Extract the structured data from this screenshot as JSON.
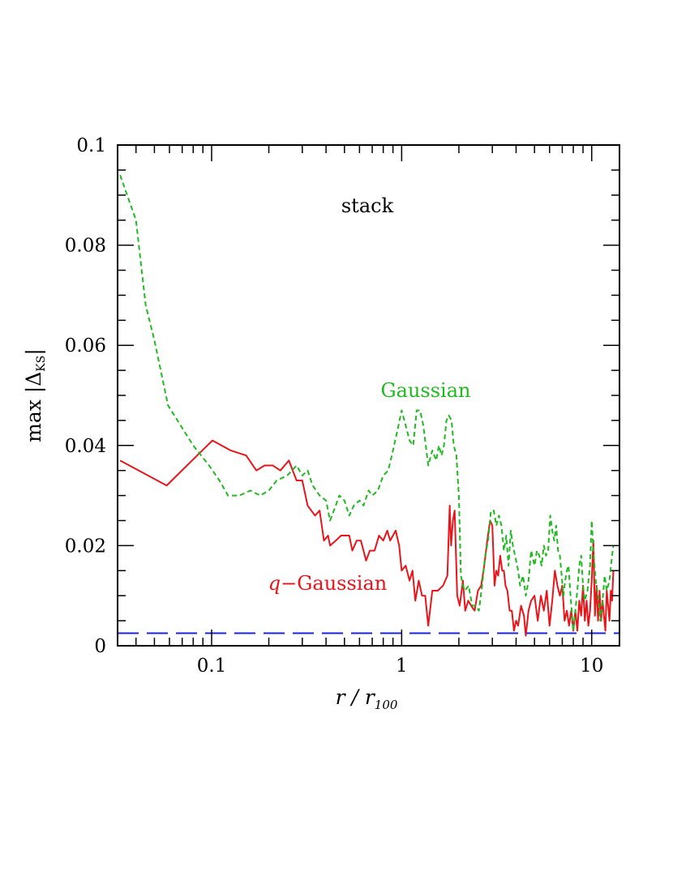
{
  "chart_data": {
    "type": "line",
    "title": "",
    "xlabel": {
      "main": "r / r",
      "subscript": "100"
    },
    "ylabel": {
      "main": "max |Δ",
      "subscript": "KS",
      "close": "|"
    },
    "x_scale": "log",
    "xlim": [
      0.032,
      14
    ],
    "ylim": [
      0,
      0.1
    ],
    "x_ticks": [
      {
        "value": 0.1,
        "label": "0.1"
      },
      {
        "value": 1,
        "label": "1"
      },
      {
        "value": 10,
        "label": "10"
      }
    ],
    "y_ticks": [
      {
        "value": 0,
        "label": "0"
      },
      {
        "value": 0.02,
        "label": "0.02"
      },
      {
        "value": 0.04,
        "label": "0.04"
      },
      {
        "value": 0.06,
        "label": "0.06"
      },
      {
        "value": 0.08,
        "label": "0.08"
      },
      {
        "value": 0.1,
        "label": "0.1"
      }
    ],
    "grid": false,
    "annotations": {
      "stack": "stack",
      "gaussian": "Gaussian",
      "qgaussian_q": "q",
      "qgaussian_rest": "−Gaussian"
    },
    "series": [
      {
        "name": "q−Gaussian",
        "color": "#e8151b",
        "style": "solid",
        "points": [
          [
            0.033,
            0.037
          ],
          [
            0.058,
            0.032
          ],
          [
            0.101,
            0.041
          ],
          [
            0.126,
            0.039
          ],
          [
            0.152,
            0.038
          ],
          [
            0.172,
            0.035
          ],
          [
            0.19,
            0.036
          ],
          [
            0.21,
            0.036
          ],
          [
            0.23,
            0.035
          ],
          [
            0.255,
            0.037
          ],
          [
            0.28,
            0.033
          ],
          [
            0.3,
            0.033
          ],
          [
            0.32,
            0.028
          ],
          [
            0.35,
            0.026
          ],
          [
            0.37,
            0.027
          ],
          [
            0.39,
            0.021
          ],
          [
            0.41,
            0.022
          ],
          [
            0.42,
            0.02
          ],
          [
            0.45,
            0.021
          ],
          [
            0.48,
            0.022
          ],
          [
            0.5,
            0.022
          ],
          [
            0.53,
            0.022
          ],
          [
            0.55,
            0.019
          ],
          [
            0.58,
            0.021
          ],
          [
            0.61,
            0.021
          ],
          [
            0.65,
            0.017
          ],
          [
            0.68,
            0.019
          ],
          [
            0.72,
            0.019
          ],
          [
            0.76,
            0.022
          ],
          [
            0.8,
            0.021
          ],
          [
            0.84,
            0.023
          ],
          [
            0.87,
            0.021
          ],
          [
            0.9,
            0.022
          ],
          [
            0.93,
            0.023
          ],
          [
            0.97,
            0.02
          ],
          [
            1.0,
            0.015
          ],
          [
            1.05,
            0.016
          ],
          [
            1.1,
            0.013
          ],
          [
            1.14,
            0.015
          ],
          [
            1.18,
            0.009
          ],
          [
            1.23,
            0.013
          ],
          [
            1.28,
            0.01
          ],
          [
            1.33,
            0.01
          ],
          [
            1.38,
            0.004
          ],
          [
            1.45,
            0.011
          ],
          [
            1.55,
            0.011
          ],
          [
            1.65,
            0.012
          ],
          [
            1.74,
            0.014
          ],
          [
            1.79,
            0.028
          ],
          [
            1.82,
            0.02
          ],
          [
            1.86,
            0.025
          ],
          [
            1.9,
            0.027
          ],
          [
            1.96,
            0.01
          ],
          [
            2.02,
            0.008
          ],
          [
            2.1,
            0.013
          ],
          [
            2.16,
            0.007
          ],
          [
            2.24,
            0.009
          ],
          [
            2.32,
            0.008
          ],
          [
            2.42,
            0.007
          ],
          [
            2.52,
            0.011
          ],
          [
            2.62,
            0.012
          ],
          [
            2.72,
            0.016
          ],
          [
            2.82,
            0.021
          ],
          [
            2.92,
            0.025
          ],
          [
            3.0,
            0.024
          ],
          [
            3.08,
            0.012
          ],
          [
            3.15,
            0.015
          ],
          [
            3.22,
            0.014
          ],
          [
            3.3,
            0.018
          ],
          [
            3.38,
            0.015
          ],
          [
            3.45,
            0.015
          ],
          [
            3.52,
            0.012
          ],
          [
            3.6,
            0.011
          ],
          [
            3.7,
            0.007
          ],
          [
            3.8,
            0.007
          ],
          [
            3.9,
            0.003
          ],
          [
            4.0,
            0.005
          ],
          [
            4.1,
            0.004
          ],
          [
            4.25,
            0.008
          ],
          [
            4.4,
            0.006
          ],
          [
            4.5,
            0.002
          ],
          [
            4.65,
            0.007
          ],
          [
            4.8,
            0.009
          ],
          [
            5.0,
            0.01
          ],
          [
            5.2,
            0.005
          ],
          [
            5.4,
            0.01
          ],
          [
            5.6,
            0.007
          ],
          [
            5.8,
            0.011
          ],
          [
            6.0,
            0.004
          ],
          [
            6.2,
            0.009
          ],
          [
            6.4,
            0.015
          ],
          [
            6.6,
            0.012
          ],
          [
            6.8,
            0.01
          ],
          [
            7.0,
            0.012
          ],
          [
            7.2,
            0.005
          ],
          [
            7.4,
            0.007
          ],
          [
            7.6,
            0.004
          ],
          [
            7.8,
            0.007
          ],
          [
            8.0,
            0.003
          ],
          [
            8.2,
            0.007
          ],
          [
            8.4,
            0.003
          ],
          [
            8.6,
            0.009
          ],
          [
            8.8,
            0.006
          ],
          [
            9.0,
            0.012
          ],
          [
            9.2,
            0.005
          ],
          [
            9.4,
            0.009
          ],
          [
            9.6,
            0.004
          ],
          [
            9.8,
            0.007
          ],
          [
            10.0,
            0.013
          ],
          [
            10.2,
            0.021
          ],
          [
            10.4,
            0.006
          ],
          [
            10.6,
            0.012
          ],
          [
            10.8,
            0.005
          ],
          [
            11.0,
            0.011
          ],
          [
            11.2,
            0.005
          ],
          [
            11.4,
            0.009
          ],
          [
            11.6,
            0.006
          ],
          [
            11.8,
            0.003
          ],
          [
            12.0,
            0.011
          ],
          [
            12.2,
            0.008
          ],
          [
            12.4,
            0.005
          ],
          [
            12.6,
            0.011
          ],
          [
            12.8,
            0.009
          ],
          [
            13.0,
            0.015
          ]
        ]
      },
      {
        "name": "Gaussian",
        "color": "#1fba1f",
        "style": "dashed",
        "points": [
          [
            0.033,
            0.094
          ],
          [
            0.04,
            0.085
          ],
          [
            0.045,
            0.068
          ],
          [
            0.05,
            0.061
          ],
          [
            0.059,
            0.048
          ],
          [
            0.08,
            0.04
          ],
          [
            0.097,
            0.036
          ],
          [
            0.11,
            0.033
          ],
          [
            0.122,
            0.03
          ],
          [
            0.14,
            0.03
          ],
          [
            0.16,
            0.031
          ],
          [
            0.18,
            0.03
          ],
          [
            0.2,
            0.031
          ],
          [
            0.22,
            0.033
          ],
          [
            0.25,
            0.034
          ],
          [
            0.28,
            0.036
          ],
          [
            0.3,
            0.034
          ],
          [
            0.32,
            0.035
          ],
          [
            0.34,
            0.032
          ],
          [
            0.37,
            0.03
          ],
          [
            0.4,
            0.029
          ],
          [
            0.42,
            0.025
          ],
          [
            0.45,
            0.028
          ],
          [
            0.47,
            0.03
          ],
          [
            0.5,
            0.029
          ],
          [
            0.53,
            0.026
          ],
          [
            0.56,
            0.028
          ],
          [
            0.6,
            0.029
          ],
          [
            0.63,
            0.028
          ],
          [
            0.67,
            0.031
          ],
          [
            0.7,
            0.03
          ],
          [
            0.75,
            0.031
          ],
          [
            0.8,
            0.034
          ],
          [
            0.85,
            0.035
          ],
          [
            0.9,
            0.039
          ],
          [
            0.95,
            0.043
          ],
          [
            1.0,
            0.047
          ],
          [
            1.05,
            0.044
          ],
          [
            1.1,
            0.041
          ],
          [
            1.15,
            0.04
          ],
          [
            1.2,
            0.047
          ],
          [
            1.25,
            0.047
          ],
          [
            1.3,
            0.044
          ],
          [
            1.38,
            0.036
          ],
          [
            1.45,
            0.039
          ],
          [
            1.52,
            0.037
          ],
          [
            1.57,
            0.04
          ],
          [
            1.62,
            0.038
          ],
          [
            1.67,
            0.04
          ],
          [
            1.72,
            0.045
          ],
          [
            1.77,
            0.046
          ],
          [
            1.83,
            0.045
          ],
          [
            1.88,
            0.04
          ],
          [
            1.94,
            0.038
          ],
          [
            2.0,
            0.03
          ],
          [
            2.05,
            0.014
          ],
          [
            2.1,
            0.012
          ],
          [
            2.15,
            0.011
          ],
          [
            2.25,
            0.012
          ],
          [
            2.35,
            0.008
          ],
          [
            2.45,
            0.008
          ],
          [
            2.55,
            0.007
          ],
          [
            2.65,
            0.012
          ],
          [
            2.75,
            0.018
          ],
          [
            2.85,
            0.021
          ],
          [
            2.95,
            0.027
          ],
          [
            3.05,
            0.027
          ],
          [
            3.15,
            0.024
          ],
          [
            3.25,
            0.026
          ],
          [
            3.35,
            0.024
          ],
          [
            3.45,
            0.019
          ],
          [
            3.55,
            0.022
          ],
          [
            3.65,
            0.016
          ],
          [
            3.75,
            0.023
          ],
          [
            3.85,
            0.02
          ],
          [
            3.95,
            0.018
          ],
          [
            4.1,
            0.015
          ],
          [
            4.2,
            0.012
          ],
          [
            4.35,
            0.014
          ],
          [
            4.5,
            0.01
          ],
          [
            4.65,
            0.013
          ],
          [
            4.8,
            0.019
          ],
          [
            5.0,
            0.016
          ],
          [
            5.15,
            0.019
          ],
          [
            5.3,
            0.018
          ],
          [
            5.45,
            0.016
          ],
          [
            5.6,
            0.02
          ],
          [
            5.75,
            0.018
          ],
          [
            5.9,
            0.019
          ],
          [
            6.05,
            0.026
          ],
          [
            6.2,
            0.023
          ],
          [
            6.35,
            0.021
          ],
          [
            6.5,
            0.024
          ],
          [
            6.65,
            0.019
          ],
          [
            6.8,
            0.018
          ],
          [
            6.95,
            0.014
          ],
          [
            7.1,
            0.01
          ],
          [
            7.25,
            0.013
          ],
          [
            7.4,
            0.015
          ],
          [
            7.55,
            0.016
          ],
          [
            7.7,
            0.011
          ],
          [
            7.85,
            0.007
          ],
          [
            8.0,
            0.003
          ],
          [
            8.2,
            0.007
          ],
          [
            8.4,
            0.011
          ],
          [
            8.6,
            0.016
          ],
          [
            8.8,
            0.018
          ],
          [
            9.0,
            0.012
          ],
          [
            9.2,
            0.009
          ],
          [
            9.5,
            0.011
          ],
          [
            9.8,
            0.016
          ],
          [
            10.0,
            0.025
          ],
          [
            10.2,
            0.019
          ],
          [
            10.5,
            0.013
          ],
          [
            10.8,
            0.01
          ],
          [
            11.1,
            0.005
          ],
          [
            11.4,
            0.009
          ],
          [
            11.7,
            0.014
          ],
          [
            12.0,
            0.011
          ],
          [
            12.4,
            0.013
          ],
          [
            12.8,
            0.018
          ],
          [
            13.0,
            0.02
          ]
        ]
      },
      {
        "name": "",
        "color": "#1a24d9",
        "style": "long-dashed",
        "points": [
          [
            0.032,
            0.0025
          ],
          [
            14,
            0.0025
          ]
        ]
      }
    ]
  }
}
